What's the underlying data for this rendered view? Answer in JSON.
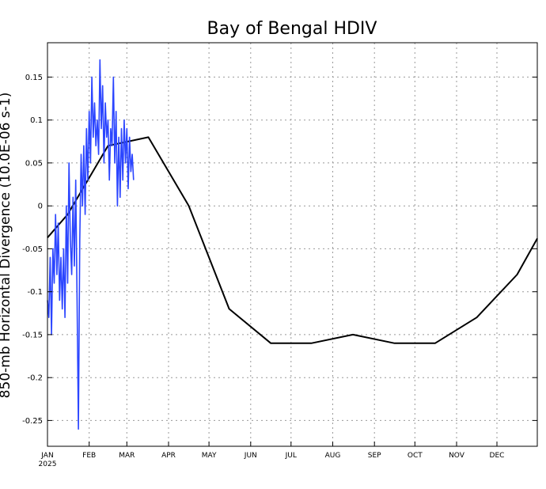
{
  "chart_data": {
    "type": "line",
    "title": "Bay of Bengal HDIV",
    "ylabel": "850-mb Horizontal Divergence (10.0E-06 s-1)",
    "xlabel": "",
    "year_label": "2025",
    "ylim": [
      -0.28,
      0.19
    ],
    "xlim": [
      "2025-01-01",
      "2025-12-31"
    ],
    "grid": true,
    "y_ticks": [
      0.15,
      0.1,
      0.05,
      0,
      -0.05,
      -0.1,
      -0.15,
      -0.2,
      -0.25
    ],
    "y_tick_labels": [
      "0.15",
      "0.1",
      "0.05",
      "0",
      "-0.05",
      "-0.1",
      "-0.15",
      "-0.2",
      "-0.25"
    ],
    "x_ticks": [
      "2025-01-01",
      "2025-02-01",
      "2025-03-01",
      "2025-04-01",
      "2025-05-01",
      "2025-06-01",
      "2025-07-01",
      "2025-08-01",
      "2025-09-01",
      "2025-10-01",
      "2025-11-01",
      "2025-12-01"
    ],
    "x_tick_labels": [
      "JAN",
      "FEB",
      "MAR",
      "APR",
      "MAY",
      "JUN",
      "JUL",
      "AUG",
      "SEP",
      "OCT",
      "NOV",
      "DEC"
    ],
    "series": [
      {
        "color": "#000000",
        "x": [
          "2025-01-01",
          "2025-01-16",
          "2025-02-15",
          "2025-03-17",
          "2025-04-16",
          "2025-05-16",
          "2025-06-16",
          "2025-07-16",
          "2025-08-16",
          "2025-09-16",
          "2025-10-16",
          "2025-11-16",
          "2025-12-16",
          "2025-12-31"
        ],
        "y": [
          -0.037,
          -0.01,
          0.07,
          0.08,
          0.0,
          -0.12,
          -0.16,
          -0.16,
          -0.15,
          -0.16,
          -0.16,
          -0.13,
          -0.08,
          -0.038
        ]
      },
      {
        "color": "#2b45ff",
        "x": [
          "2025-01-01",
          "2025-01-02",
          "2025-01-03",
          "2025-01-04",
          "2025-01-05",
          "2025-01-06",
          "2025-01-07",
          "2025-01-08",
          "2025-01-09",
          "2025-01-10",
          "2025-01-11",
          "2025-01-12",
          "2025-01-13",
          "2025-01-14",
          "2025-01-15",
          "2025-01-16",
          "2025-01-17",
          "2025-01-18",
          "2025-01-19",
          "2025-01-20",
          "2025-01-21",
          "2025-01-22",
          "2025-01-23",
          "2025-01-24",
          "2025-01-25",
          "2025-01-26",
          "2025-01-27",
          "2025-01-28",
          "2025-01-29",
          "2025-01-30",
          "2025-01-31",
          "2025-02-01",
          "2025-02-02",
          "2025-02-03",
          "2025-02-04",
          "2025-02-05",
          "2025-02-06",
          "2025-02-07",
          "2025-02-08",
          "2025-02-09",
          "2025-02-10",
          "2025-02-11",
          "2025-02-12",
          "2025-02-13",
          "2025-02-14",
          "2025-02-15",
          "2025-02-16",
          "2025-02-17",
          "2025-02-18",
          "2025-02-19",
          "2025-02-20",
          "2025-02-21",
          "2025-02-22",
          "2025-02-23",
          "2025-02-24",
          "2025-02-25",
          "2025-02-26",
          "2025-02-27",
          "2025-02-28",
          "2025-03-01",
          "2025-03-02",
          "2025-03-03",
          "2025-03-04",
          "2025-03-05",
          "2025-03-06"
        ],
        "y": [
          -0.11,
          -0.13,
          -0.06,
          -0.15,
          -0.05,
          -0.09,
          -0.01,
          -0.08,
          -0.02,
          -0.11,
          -0.06,
          -0.12,
          -0.05,
          -0.13,
          0.0,
          -0.09,
          0.05,
          -0.04,
          -0.08,
          0.01,
          -0.07,
          0.03,
          -0.11,
          -0.26,
          -0.04,
          0.06,
          0.0,
          0.07,
          -0.01,
          0.09,
          0.03,
          0.11,
          0.05,
          0.15,
          0.08,
          0.12,
          0.07,
          0.1,
          0.06,
          0.17,
          0.09,
          0.14,
          0.05,
          0.12,
          0.08,
          0.1,
          0.03,
          0.09,
          0.07,
          0.15,
          0.05,
          0.11,
          0.0,
          0.08,
          0.01,
          0.09,
          0.03,
          0.1,
          0.05,
          0.09,
          0.02,
          0.08,
          0.04,
          0.06,
          0.03
        ]
      }
    ]
  }
}
